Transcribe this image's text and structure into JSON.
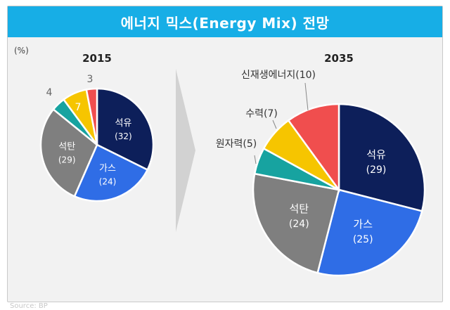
{
  "title": "에너지 믹스(Energy Mix) 전망",
  "source": "Source: BP",
  "chart_data": [
    {
      "type": "pie",
      "title": "2015",
      "unit": "(%)",
      "series": [
        {
          "name": "석유",
          "value": 32,
          "color": "#0d1f5a",
          "label_inside": true
        },
        {
          "name": "가스",
          "value": 24,
          "color": "#2f6de6",
          "label_inside": true
        },
        {
          "name": "석탄",
          "value": 29,
          "color": "#7f7f7f",
          "label_inside": true
        },
        {
          "name": "원자력",
          "value": 4,
          "color": "#17a3a0",
          "label_inside": false,
          "label": "4"
        },
        {
          "name": "수력",
          "value": 7,
          "color": "#f6c500",
          "label_inside": false,
          "label": "7"
        },
        {
          "name": "신재생에너지",
          "value": 3,
          "color": "#f04e4e",
          "label_inside": false,
          "label": "3"
        }
      ]
    },
    {
      "type": "pie",
      "title": "2035",
      "series": [
        {
          "name": "석유",
          "value": 29,
          "color": "#0d1f5a",
          "label_inside": true
        },
        {
          "name": "가스",
          "value": 25,
          "color": "#2f6de6",
          "label_inside": true
        },
        {
          "name": "석탄",
          "value": 24,
          "color": "#7f7f7f",
          "label_inside": true
        },
        {
          "name": "원자력",
          "value": 5,
          "color": "#17a3a0",
          "label_inside": false,
          "label": "원자력(5)"
        },
        {
          "name": "수력",
          "value": 7,
          "color": "#f6c500",
          "label_inside": false,
          "label": "수력(7)"
        },
        {
          "name": "신재생에너지",
          "value": 10,
          "color": "#f04e4e",
          "label_inside": false,
          "label": "신재생에너지(10)"
        }
      ]
    }
  ]
}
